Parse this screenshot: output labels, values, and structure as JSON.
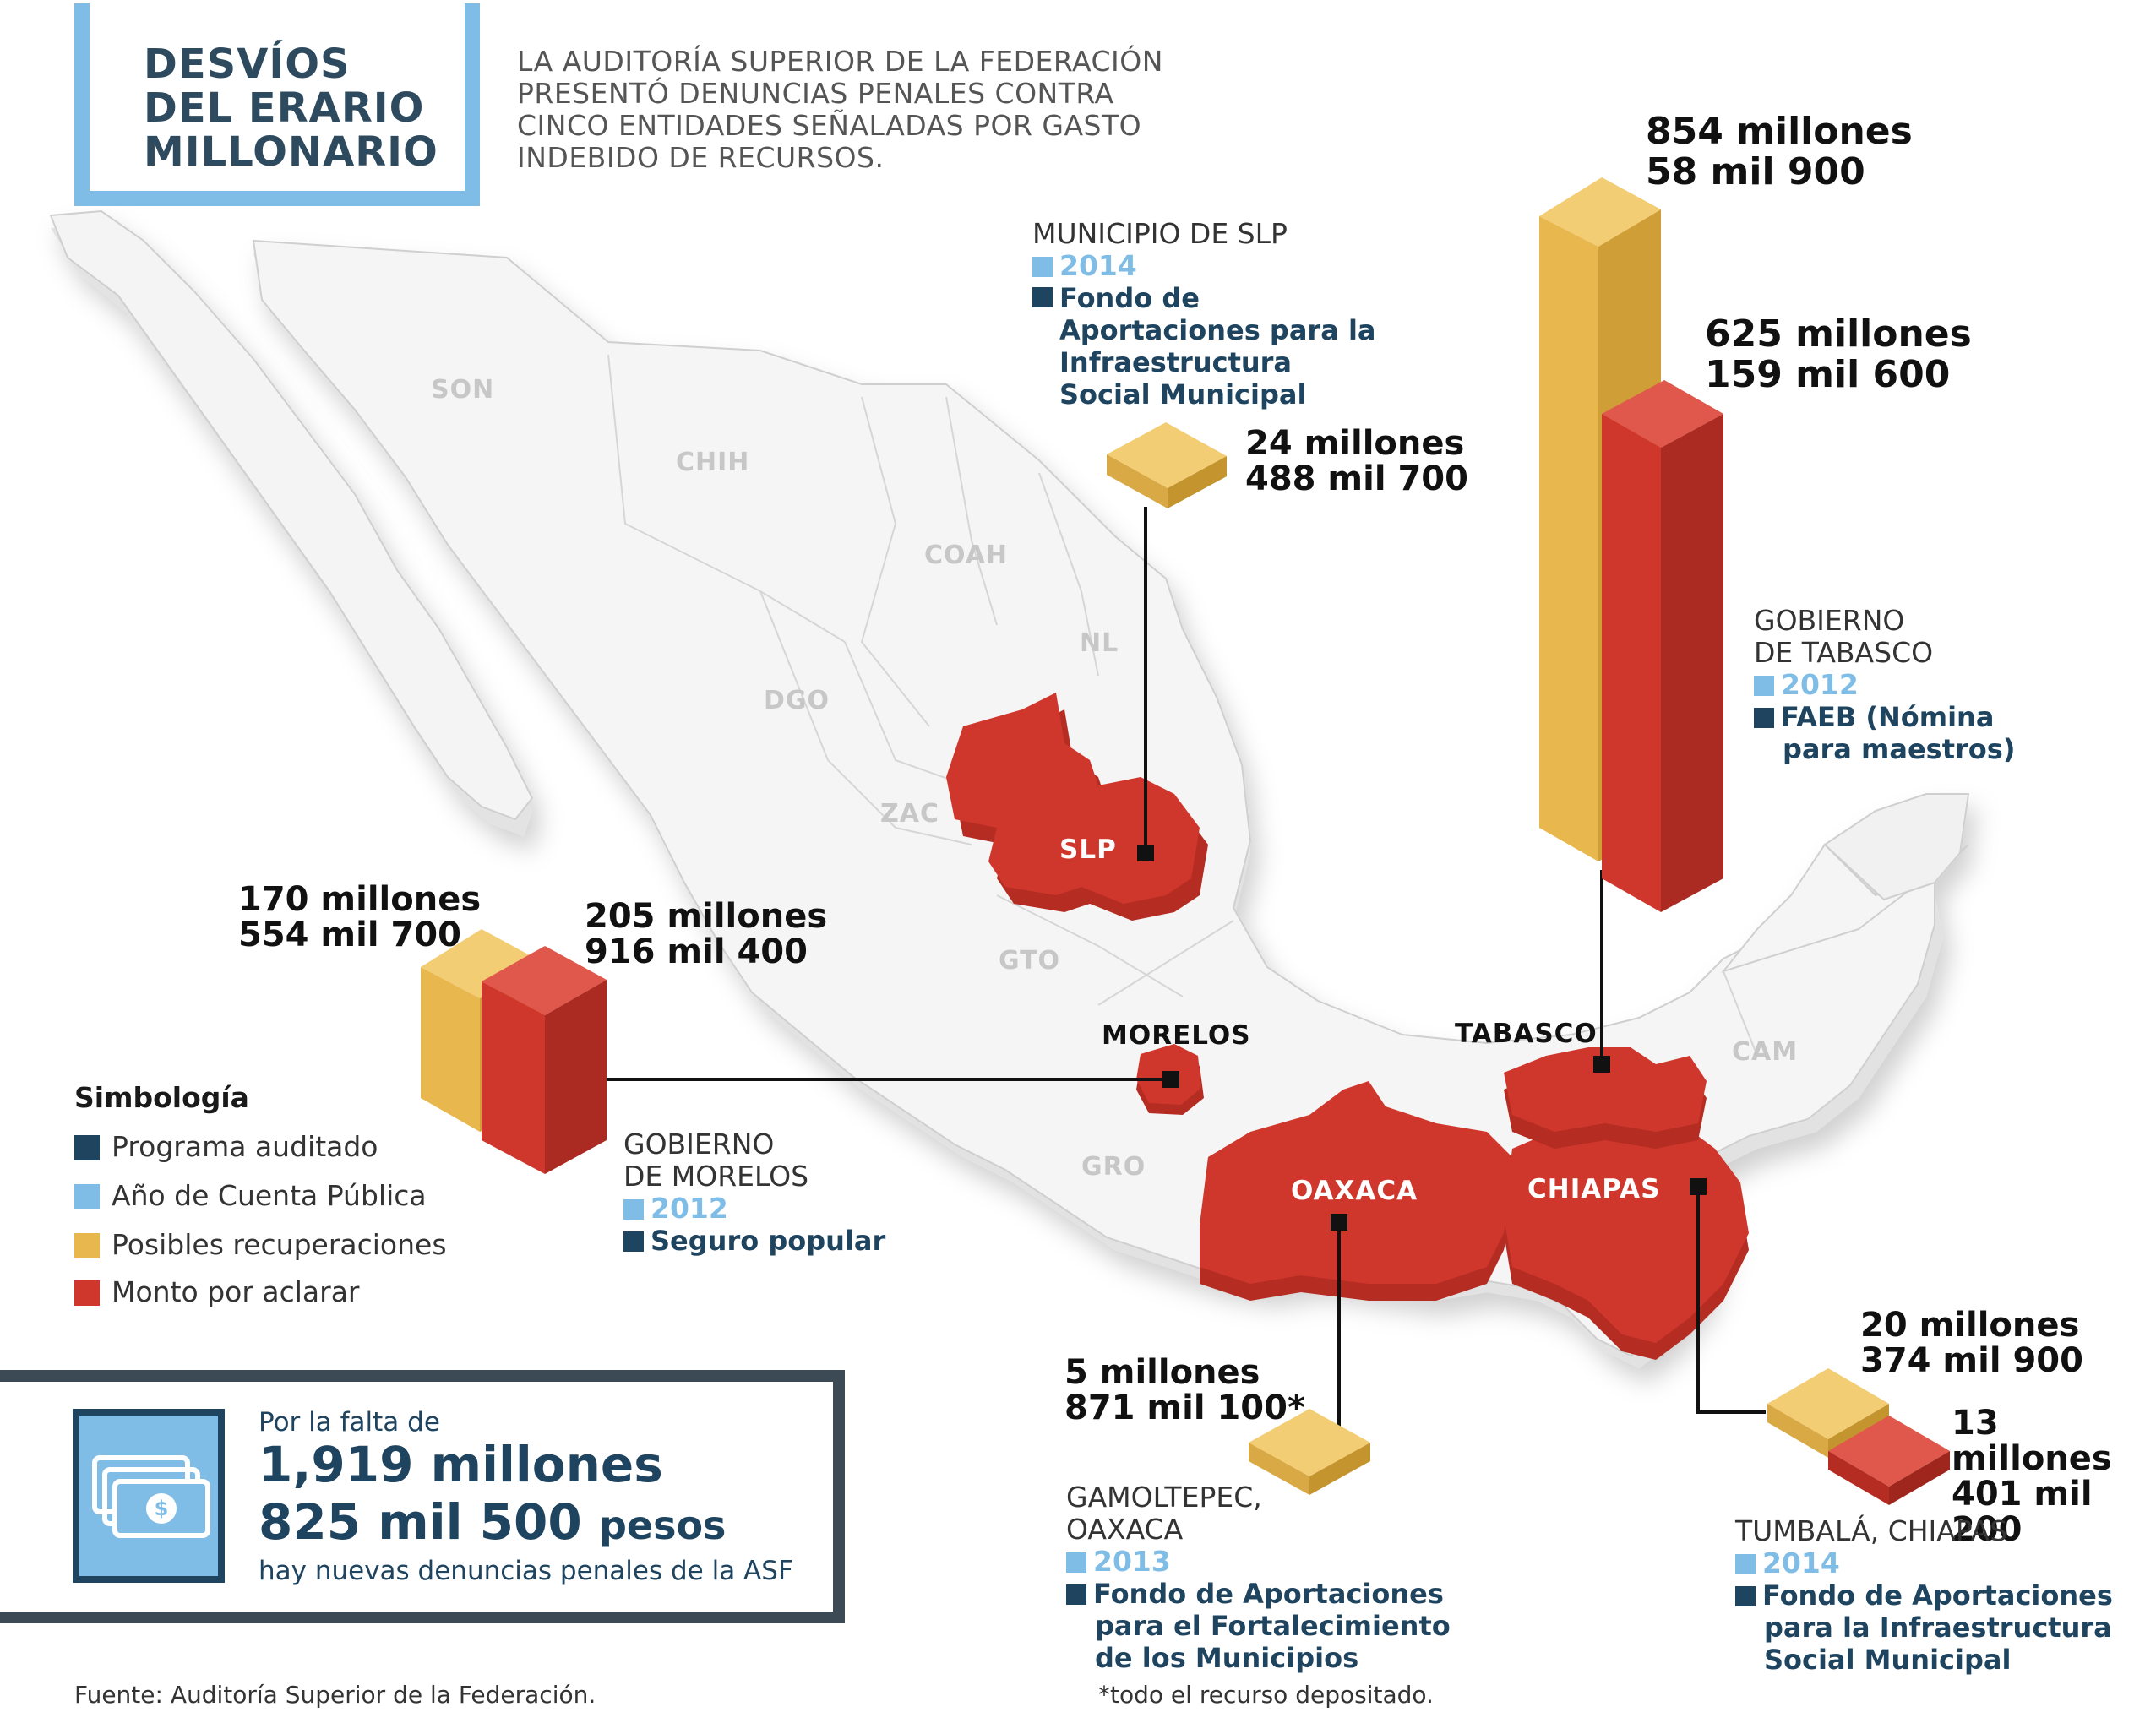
{
  "title": "DESVÍOS\nDEL ERARIO\nMILLONARIO",
  "subtitle": "LA AUDITORÍA SUPERIOR DE LA FEDERACIÓN PRESENTÓ DENUNCIAS PENALES CONTRA CINCO ENTIDADES SEÑALADAS POR GASTO INDEBIDO DE RECURSOS.",
  "colors": {
    "programa": "#1f4460",
    "anio": "#7fbde6",
    "recuperaciones": "#e8b84f",
    "aclarar": "#d0372c"
  },
  "states": [
    "SON",
    "CHIH",
    "COAH",
    "NL",
    "DGO",
    "ZAC",
    "GTO",
    "GRO",
    "CAM"
  ],
  "highlighted": [
    "SLP",
    "MORELOS",
    "TABASCO",
    "OAXACA",
    "CHIAPAS"
  ],
  "cases": {
    "slp": {
      "entity": "MUNICIPIO DE SLP",
      "year": "2014",
      "program": "Fondo de Aportaciones para la Infraestructura Social Municipal",
      "recuperaciones_l1": "24 millones",
      "recuperaciones_l2": "488 mil 700"
    },
    "tabasco": {
      "entity_l1": "GOBIERNO",
      "entity_l2": "DE TABASCO",
      "year": "2012",
      "program_l1": "FAEB (Nómina",
      "program_l2": "para maestros)",
      "recuperaciones_l1": "854 millones",
      "recuperaciones_l2": "58 mil 900",
      "aclarar_l1": "625 millones",
      "aclarar_l2": "159 mil 600"
    },
    "morelos": {
      "entity_l1": "GOBIERNO",
      "entity_l2": "DE MORELOS",
      "year": "2012",
      "program": "Seguro popular",
      "recuperaciones_l1": "170 millones",
      "recuperaciones_l2": "554 mil 700",
      "aclarar_l1": "205 millones",
      "aclarar_l2": "916 mil 400"
    },
    "oaxaca": {
      "entity_l1": "GAMOLTEPEC,",
      "entity_l2": "OAXACA",
      "year": "2013",
      "program_l1": "Fondo de Aportaciones",
      "program_l2": "para el Fortalecimiento",
      "program_l3": "de los Municipios",
      "recuperaciones_l1": "5 millones",
      "recuperaciones_l2": "871 mil 100*",
      "note": "*todo el recurso depositado."
    },
    "chiapas": {
      "entity": "TUMBALÁ, CHIAPAS",
      "year": "2014",
      "program_l1": "Fondo de Aportaciones",
      "program_l2": "para la Infraestructura",
      "program_l3": "Social Municipal",
      "recuperaciones_l1": "20 millones",
      "recuperaciones_l2": "374 mil 900",
      "aclarar_l1": "13 millones",
      "aclarar_l2": "401 mil 200"
    }
  },
  "legend": {
    "title": "Simbología",
    "items": [
      "Programa auditado",
      "Año de Cuenta Pública",
      "Posibles recuperaciones",
      "Monto por aclarar"
    ]
  },
  "total": {
    "pre": "Por la falta de",
    "line1": "1,919 millones",
    "line2": "825 mil 500",
    "line2_unit": "pesos",
    "post": "hay nuevas denuncias penales de la ASF"
  },
  "source": "Fuente: Auditoría Superior de la Federación."
}
